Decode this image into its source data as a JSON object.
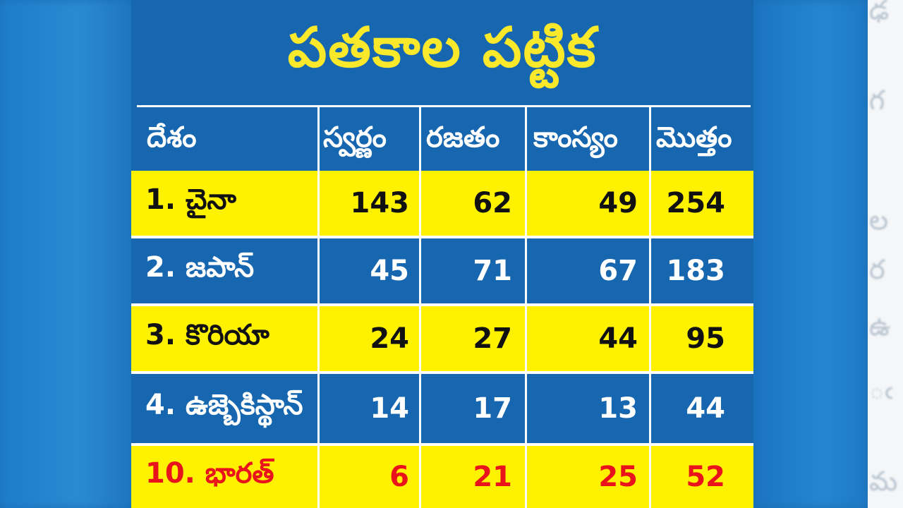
{
  "title": "పతకాల పట్టిక",
  "columns": [
    "దేశం",
    "స్వర్ణం",
    "రజతం",
    "కాంస్యం",
    "మొత్తం"
  ],
  "rows": [
    {
      "country": "1. చైనా",
      "gold": "143",
      "silver": "62",
      "bronze": "49",
      "total": "254"
    },
    {
      "country": "2. జపాన్",
      "gold": "45",
      "silver": "71",
      "bronze": "67",
      "total": "183"
    },
    {
      "country": "3. కొరియా",
      "gold": "24",
      "silver": "27",
      "bronze": "44",
      "total": "95"
    },
    {
      "country": "4. ఉజ్బెకిస్థాన్",
      "gold": "14",
      "silver": "17",
      "bronze": "13",
      "total": "44"
    },
    {
      "country": "10. భారత్",
      "gold": "6",
      "silver": "21",
      "bronze": "25",
      "total": "52"
    }
  ],
  "colors": {
    "background_blue": "#1766b0",
    "highlight_yellow": "#fff200",
    "title_yellow": "#f9e92a",
    "india_red": "#e8131b"
  }
}
